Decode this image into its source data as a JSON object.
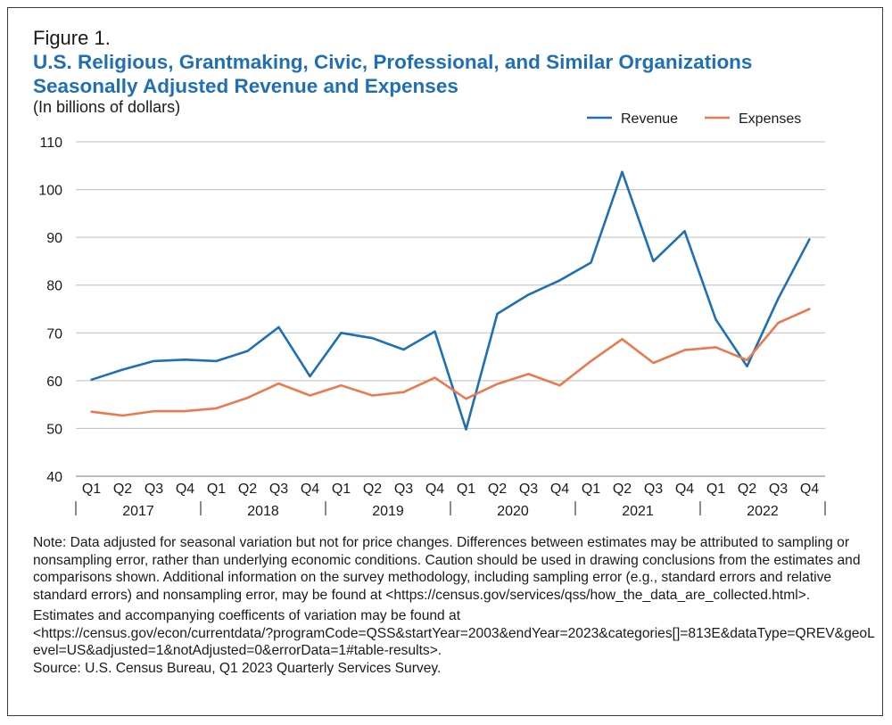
{
  "figure_label": "Figure 1.",
  "title_line1": "U.S. Religious, Grantmaking, Civic, Professional, and Similar Organizations",
  "title_line2": "Seasonally Adjusted Revenue and Expenses",
  "subtitle": "(In billions of dollars)",
  "colors": {
    "revenue": "#1f6fb5",
    "expenses": "#ea7a4e",
    "title": "#1f6fb5",
    "grid": "#bdbdbd"
  },
  "chart_data": {
    "type": "line",
    "categories": [
      "Q1",
      "Q2",
      "Q3",
      "Q4",
      "Q1",
      "Q2",
      "Q3",
      "Q4",
      "Q1",
      "Q2",
      "Q3",
      "Q4",
      "Q1",
      "Q2",
      "Q3",
      "Q4",
      "Q1",
      "Q2",
      "Q3",
      "Q4",
      "Q1",
      "Q2",
      "Q3",
      "Q4"
    ],
    "years": [
      "2017",
      "2018",
      "2019",
      "2020",
      "2021",
      "2022"
    ],
    "series": [
      {
        "name": "Revenue",
        "values": [
          60.2,
          62.3,
          64.1,
          64.4,
          64.1,
          66.2,
          71.2,
          60.9,
          70.0,
          68.9,
          66.5,
          70.3,
          49.8,
          74.0,
          78.0,
          81.0,
          84.7,
          103.7,
          85.0,
          91.3,
          72.8,
          63.0,
          77.2,
          89.6
        ]
      },
      {
        "name": "Expenses",
        "values": [
          53.5,
          52.7,
          53.6,
          53.6,
          54.2,
          56.4,
          59.4,
          56.9,
          59.0,
          56.9,
          57.6,
          60.6,
          56.2,
          59.3,
          61.4,
          59.0,
          64.1,
          68.7,
          63.7,
          66.4,
          67.0,
          64.3,
          72.1,
          75.0
        ]
      }
    ],
    "ylim": [
      40,
      110
    ],
    "yticks": [
      40,
      50,
      60,
      70,
      80,
      90,
      100,
      110
    ],
    "grid": true,
    "legend_position": "top-right"
  },
  "notes": {
    "note": "Note: Data adjusted for seasonal variation but not for price changes. Differences between estimates may be attributed to sampling or nonsampling error, rather than underlying economic conditions. Caution should be used in drawing conclusions from the estimates and comparisons shown. Additional information on the survey methodology, including sampling error (e.g., standard errors and relative standard errors) and nonsampling error, may be found at <https://census.gov/services/qss/how_the_data_are_collected.html>.",
    "cv_intro": "Estimates and accompanying coefficents of variation may be found at",
    "cv_url": "<https://census.gov/econ/currentdata/?programCode=QSS&startYear=2003&endYear=2023&categories[]=813E&dataType=QREV&geoLevel=US&adjusted=1&notAdjusted=0&errorData=1#table-results>.",
    "source": "Source: U.S. Census Bureau, Q1 2023 Quarterly Services Survey."
  }
}
